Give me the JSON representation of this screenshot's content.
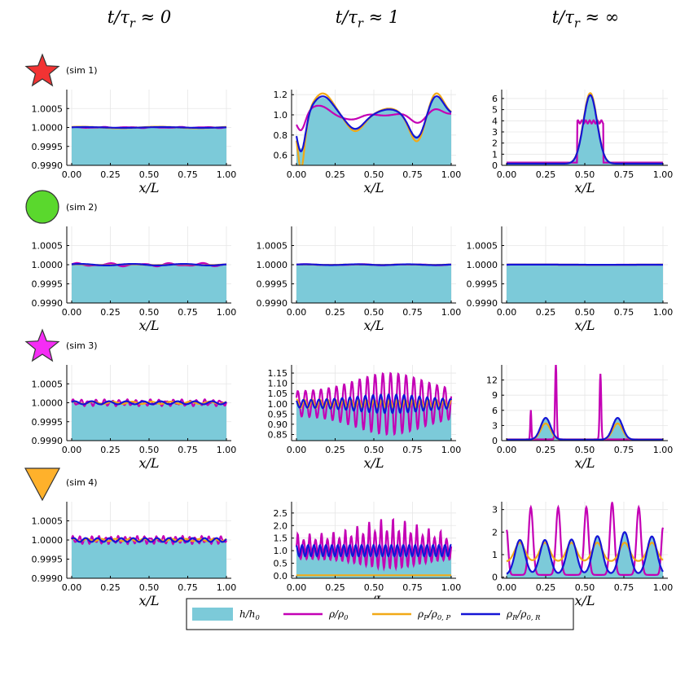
{
  "column_titles": [
    "t/τ_r ≈ 0",
    "t/τ_r ≈ 1",
    "t/τ_r ≈ ∞"
  ],
  "row_labels": [
    "(sim 1)",
    "(sim 2)",
    "(sim 3)",
    "(sim 4)"
  ],
  "row_markers": [
    {
      "shape": "star",
      "color": "#f23333"
    },
    {
      "shape": "circle",
      "color": "#5ad82d"
    },
    {
      "shape": "star",
      "color": "#f52df5"
    },
    {
      "shape": "triangle-down",
      "color": "#ffb12b"
    }
  ],
  "colors": {
    "h_fill": "#7ccad9",
    "rho": "#c400b5",
    "rhoP": "#f2a916",
    "rhoR": "#1414d6",
    "grid": "#e6e6e6",
    "axis": "#000000"
  },
  "legend": [
    {
      "key": "h",
      "label": "h/h₀"
    },
    {
      "key": "rho",
      "label": "ρ/ρ₀"
    },
    {
      "key": "rhoP",
      "label": "ρ_P/ρ₀,P"
    },
    {
      "key": "rhoR",
      "label": "ρ_R/ρ₀,R"
    }
  ],
  "chart_data": [
    {
      "id": "s1c0",
      "type": "line+area",
      "xlabel": "x/L",
      "xlim": [
        0,
        1
      ],
      "ylim": [
        0.999,
        1.001
      ],
      "xticks": [
        "0.00",
        "0.25",
        "0.50",
        "0.75",
        "1.00"
      ],
      "yticks": [
        {
          "v": 0.999,
          "t": "0.9990"
        },
        {
          "v": 0.9995,
          "t": "0.9995"
        },
        {
          "v": 1.0,
          "t": "1.0000"
        },
        {
          "v": 1.0005,
          "t": "1.0005"
        }
      ],
      "base": 1.0,
      "amp": {
        "rho": 1e-05,
        "rhoP": 2e-05,
        "rhoR": 1e-05,
        "h": 1e-05
      },
      "freq": {
        "rho": 6,
        "rhoP": 2,
        "rhoR": 2
      },
      "model": "wave"
    },
    {
      "id": "s1c1",
      "type": "line+area",
      "xlabel": "x/L",
      "xlim": [
        0,
        1
      ],
      "ylim": [
        0.5,
        1.25
      ],
      "xticks": [
        "0.00",
        "0.25",
        "0.50",
        "0.75",
        "1.00"
      ],
      "yticks": [
        {
          "v": 0.6,
          "t": "0.6"
        },
        {
          "v": 0.8,
          "t": "0.8"
        },
        {
          "v": 1.0,
          "t": "1.0"
        },
        {
          "v": 1.2,
          "t": "1.2"
        }
      ],
      "model": "s1mid"
    },
    {
      "id": "s1c2",
      "type": "line+area",
      "xlabel": "x/L",
      "xlim": [
        0,
        1
      ],
      "ylim": [
        0,
        6.8
      ],
      "xticks": [
        "0.00",
        "0.25",
        "0.50",
        "0.75",
        "1.00"
      ],
      "yticks": [
        {
          "v": 0,
          "t": "0"
        },
        {
          "v": 1,
          "t": "1"
        },
        {
          "v": 2,
          "t": "2"
        },
        {
          "v": 3,
          "t": "3"
        },
        {
          "v": 4,
          "t": "4"
        },
        {
          "v": 5,
          "t": "5"
        },
        {
          "v": 6,
          "t": "6"
        }
      ],
      "model": "s1end"
    },
    {
      "id": "s2c0",
      "type": "line+area",
      "xlabel": "x/L",
      "xlim": [
        0,
        1
      ],
      "ylim": [
        0.999,
        1.001
      ],
      "xticks": [
        "0.00",
        "0.25",
        "0.50",
        "0.75",
        "1.00"
      ],
      "yticks": [
        {
          "v": 0.999,
          "t": "0.9990"
        },
        {
          "v": 0.9995,
          "t": "0.9995"
        },
        {
          "v": 1.0,
          "t": "1.0000"
        },
        {
          "v": 1.0005,
          "t": "1.0005"
        }
      ],
      "model": "wave",
      "base": 1.0,
      "amp": {
        "rho": 3e-05,
        "rhoP": 1e-05,
        "rhoR": 2e-05,
        "h": 2e-05
      },
      "freq": {
        "rho": 5,
        "rhoP": 3,
        "rhoR": 3
      }
    },
    {
      "id": "s2c1",
      "type": "line+area",
      "xlabel": "x/L",
      "xlim": [
        0,
        1
      ],
      "ylim": [
        0.999,
        1.001
      ],
      "xticks": [
        "0.00",
        "0.25",
        "0.50",
        "0.75",
        "1.00"
      ],
      "yticks": [
        {
          "v": 0.999,
          "t": "0.9990"
        },
        {
          "v": 0.9995,
          "t": "0.9995"
        },
        {
          "v": 1.0,
          "t": "1.0000"
        },
        {
          "v": 1.0005,
          "t": "1.0005"
        }
      ],
      "model": "wave",
      "base": 1.0,
      "amp": {
        "rho": 1e-05,
        "rhoP": 5e-06,
        "rhoR": 1e-05,
        "h": 8e-06
      },
      "freq": {
        "rho": 3,
        "rhoP": 3,
        "rhoR": 3
      }
    },
    {
      "id": "s2c2",
      "type": "line+area",
      "xlabel": "x/L",
      "xlim": [
        0,
        1
      ],
      "ylim": [
        0.999,
        1.001
      ],
      "xticks": [
        "0.00",
        "0.25",
        "0.50",
        "0.75",
        "1.00"
      ],
      "yticks": [
        {
          "v": 0.999,
          "t": "0.9990"
        },
        {
          "v": 0.9995,
          "t": "0.9995"
        },
        {
          "v": 1.0,
          "t": "1.0000"
        },
        {
          "v": 1.0005,
          "t": "1.0005"
        }
      ],
      "model": "wave",
      "base": 1.0,
      "amp": {
        "rho": 2e-06,
        "rhoP": 2e-06,
        "rhoR": 2e-06,
        "h": 2e-06
      },
      "freq": {
        "rho": 1,
        "rhoP": 1,
        "rhoR": 1
      }
    },
    {
      "id": "s3c0",
      "type": "line+area",
      "xlabel": "x/L",
      "xlim": [
        0,
        1
      ],
      "ylim": [
        0.999,
        1.001
      ],
      "xticks": [
        "0.00",
        "0.25",
        "0.50",
        "0.75",
        "1.00"
      ],
      "yticks": [
        {
          "v": 0.999,
          "t": "0.9990"
        },
        {
          "v": 0.9995,
          "t": "0.9995"
        },
        {
          "v": 1.0,
          "t": "1.0000"
        },
        {
          "v": 1.0005,
          "t": "1.0005"
        }
      ],
      "model": "wave",
      "base": 1.0,
      "amp": {
        "rho": 6e-05,
        "rhoP": 3e-05,
        "rhoR": 4e-05,
        "h": 3e-05
      },
      "freq": {
        "rho": 20,
        "rhoP": 8,
        "rhoR": 9
      }
    },
    {
      "id": "s3c1",
      "type": "line+area",
      "xlabel": "x/L",
      "xlim": [
        0,
        1
      ],
      "ylim": [
        0.82,
        1.19
      ],
      "xticks": [
        "0.00",
        "0.25",
        "0.50",
        "0.75",
        "1.00"
      ],
      "yticks": [
        {
          "v": 0.85,
          "t": "0.85"
        },
        {
          "v": 0.9,
          "t": "0.90"
        },
        {
          "v": 0.95,
          "t": "0.95"
        },
        {
          "v": 1.0,
          "t": "1.00"
        },
        {
          "v": 1.05,
          "t": "1.05"
        },
        {
          "v": 1.1,
          "t": "1.10"
        },
        {
          "v": 1.15,
          "t": "1.15"
        }
      ],
      "model": "s3mid"
    },
    {
      "id": "s3c2",
      "type": "line+area",
      "xlabel": "x/L",
      "xlim": [
        0,
        1
      ],
      "ylim": [
        0,
        15
      ],
      "xticks": [
        "0.00",
        "0.25",
        "0.50",
        "0.75",
        "1.00"
      ],
      "yticks": [
        {
          "v": 0,
          "t": "0"
        },
        {
          "v": 3,
          "t": "3"
        },
        {
          "v": 6,
          "t": "6"
        },
        {
          "v": 9,
          "t": "9"
        },
        {
          "v": 12,
          "t": "12"
        }
      ],
      "model": "s3end"
    },
    {
      "id": "s4c0",
      "type": "line+area",
      "xlabel": "x/L",
      "xlim": [
        0,
        1
      ],
      "ylim": [
        0.999,
        1.001
      ],
      "xticks": [
        "0.00",
        "0.25",
        "0.50",
        "0.75",
        "1.00"
      ],
      "yticks": [
        {
          "v": 0.999,
          "t": "0.9990"
        },
        {
          "v": 0.9995,
          "t": "0.9995"
        },
        {
          "v": 1.0,
          "t": "1.0000"
        },
        {
          "v": 1.0005,
          "t": "1.0005"
        }
      ],
      "model": "wave",
      "base": 1.0,
      "amp": {
        "rho": 7e-05,
        "rhoP": 3e-05,
        "rhoR": 5e-05,
        "h": 3e-05
      },
      "freq": {
        "rho": 24,
        "rhoP": 11,
        "rhoR": 13
      }
    },
    {
      "id": "s4c1",
      "type": "line+area",
      "xlabel": "x/L",
      "xlim": [
        0,
        1
      ],
      "ylim": [
        -0.1,
        2.95
      ],
      "xticks": [
        "0.00",
        "0.25",
        "0.50",
        "0.75",
        "1.00"
      ],
      "yticks": [
        {
          "v": 0,
          "t": "0.0"
        },
        {
          "v": 0.5,
          "t": "0.5"
        },
        {
          "v": 1.0,
          "t": "1.0"
        },
        {
          "v": 1.5,
          "t": "1.5"
        },
        {
          "v": 2.0,
          "t": "2.0"
        },
        {
          "v": 2.5,
          "t": "2.5"
        }
      ],
      "model": "s4mid"
    },
    {
      "id": "s4c2",
      "type": "line+area",
      "xlabel": "x/L",
      "xlim": [
        0,
        1
      ],
      "ylim": [
        -0.05,
        3.35
      ],
      "xticks": [
        "0.00",
        "0.25",
        "0.50",
        "0.75",
        "1.00"
      ],
      "yticks": [
        {
          "v": 0,
          "t": "0"
        },
        {
          "v": 1,
          "t": "1"
        },
        {
          "v": 2,
          "t": "2"
        },
        {
          "v": 3,
          "t": "3"
        }
      ],
      "model": "s4end"
    }
  ]
}
